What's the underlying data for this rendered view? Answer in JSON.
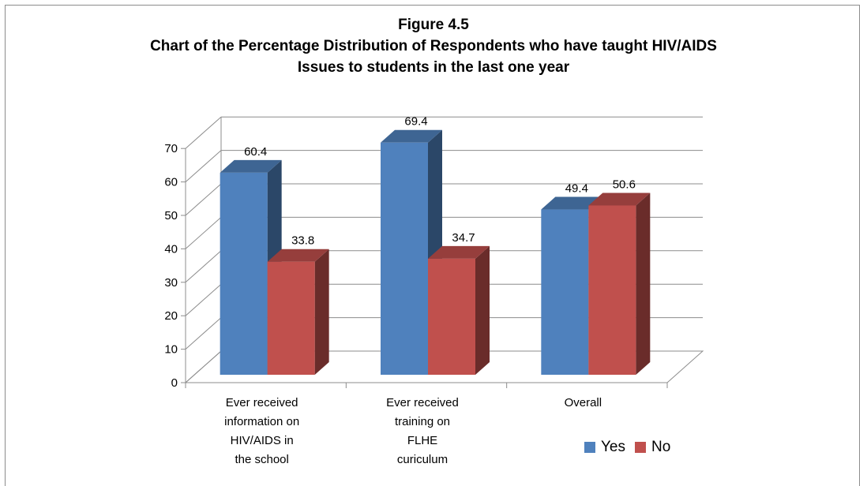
{
  "chart_data": {
    "type": "bar",
    "title": "Figure 4.5",
    "subtitle_lines": [
      "Chart of the Percentage Distribution of Respondents who have taught HIV/AIDS",
      "Issues to students in the last one year"
    ],
    "categories": [
      [
        "Ever received",
        "information on",
        "HIV/AIDS in",
        "the school"
      ],
      [
        "Ever received",
        "training on",
        "FLHE",
        "curiculum"
      ],
      [
        "Overall"
      ]
    ],
    "series": [
      {
        "name": "Yes",
        "values": [
          60.4,
          69.4,
          49.4
        ],
        "labels": [
          "60.4",
          "69.4",
          "49.4"
        ],
        "color": "#4f81bd"
      },
      {
        "name": "No",
        "values": [
          33.8,
          34.7,
          50.6
        ],
        "labels": [
          "33.8",
          "34.7",
          "50.6"
        ],
        "color": "#c0504d"
      }
    ],
    "yticks": [
      "0",
      "10",
      "20",
      "30",
      "40",
      "50",
      "60",
      "70"
    ],
    "ylim": [
      0,
      70
    ],
    "grid": true,
    "legend_position": "bottom-right",
    "three_d": true
  }
}
